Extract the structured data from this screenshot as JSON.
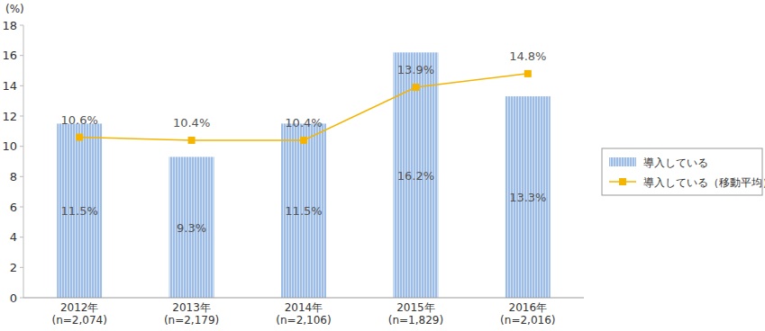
{
  "chart_data": {
    "type": "bar",
    "y_label": "(%)",
    "categories": [
      "2012年\n(n=2,074)",
      "2013年\n(n=2,179)",
      "2014年\n(n=2,106)",
      "2015年\n(n=1,829)",
      "2016年\n(n=2,016)"
    ],
    "series": [
      {
        "name": "導入している",
        "type": "bar",
        "color": "#9dbde6",
        "values": [
          11.5,
          9.3,
          11.5,
          16.2,
          13.3
        ],
        "value_labels": [
          "11.5%",
          "9.3%",
          "11.5%",
          "16.2%",
          "13.3%"
        ]
      },
      {
        "name": "導入している（移動平均）",
        "type": "line",
        "color": "#f5b400",
        "marker": "square",
        "line_style": "solid",
        "values": [
          10.6,
          10.4,
          10.4,
          13.9,
          14.8
        ],
        "value_labels": [
          "10.6%",
          "10.4%",
          "10.4%",
          "13.9%",
          "14.8%"
        ]
      }
    ],
    "ylim": [
      0,
      18
    ],
    "yticks": [
      0,
      2,
      4,
      6,
      8,
      10,
      12,
      14,
      16,
      18
    ],
    "grid": false,
    "legend": "right",
    "data_labels": true
  }
}
